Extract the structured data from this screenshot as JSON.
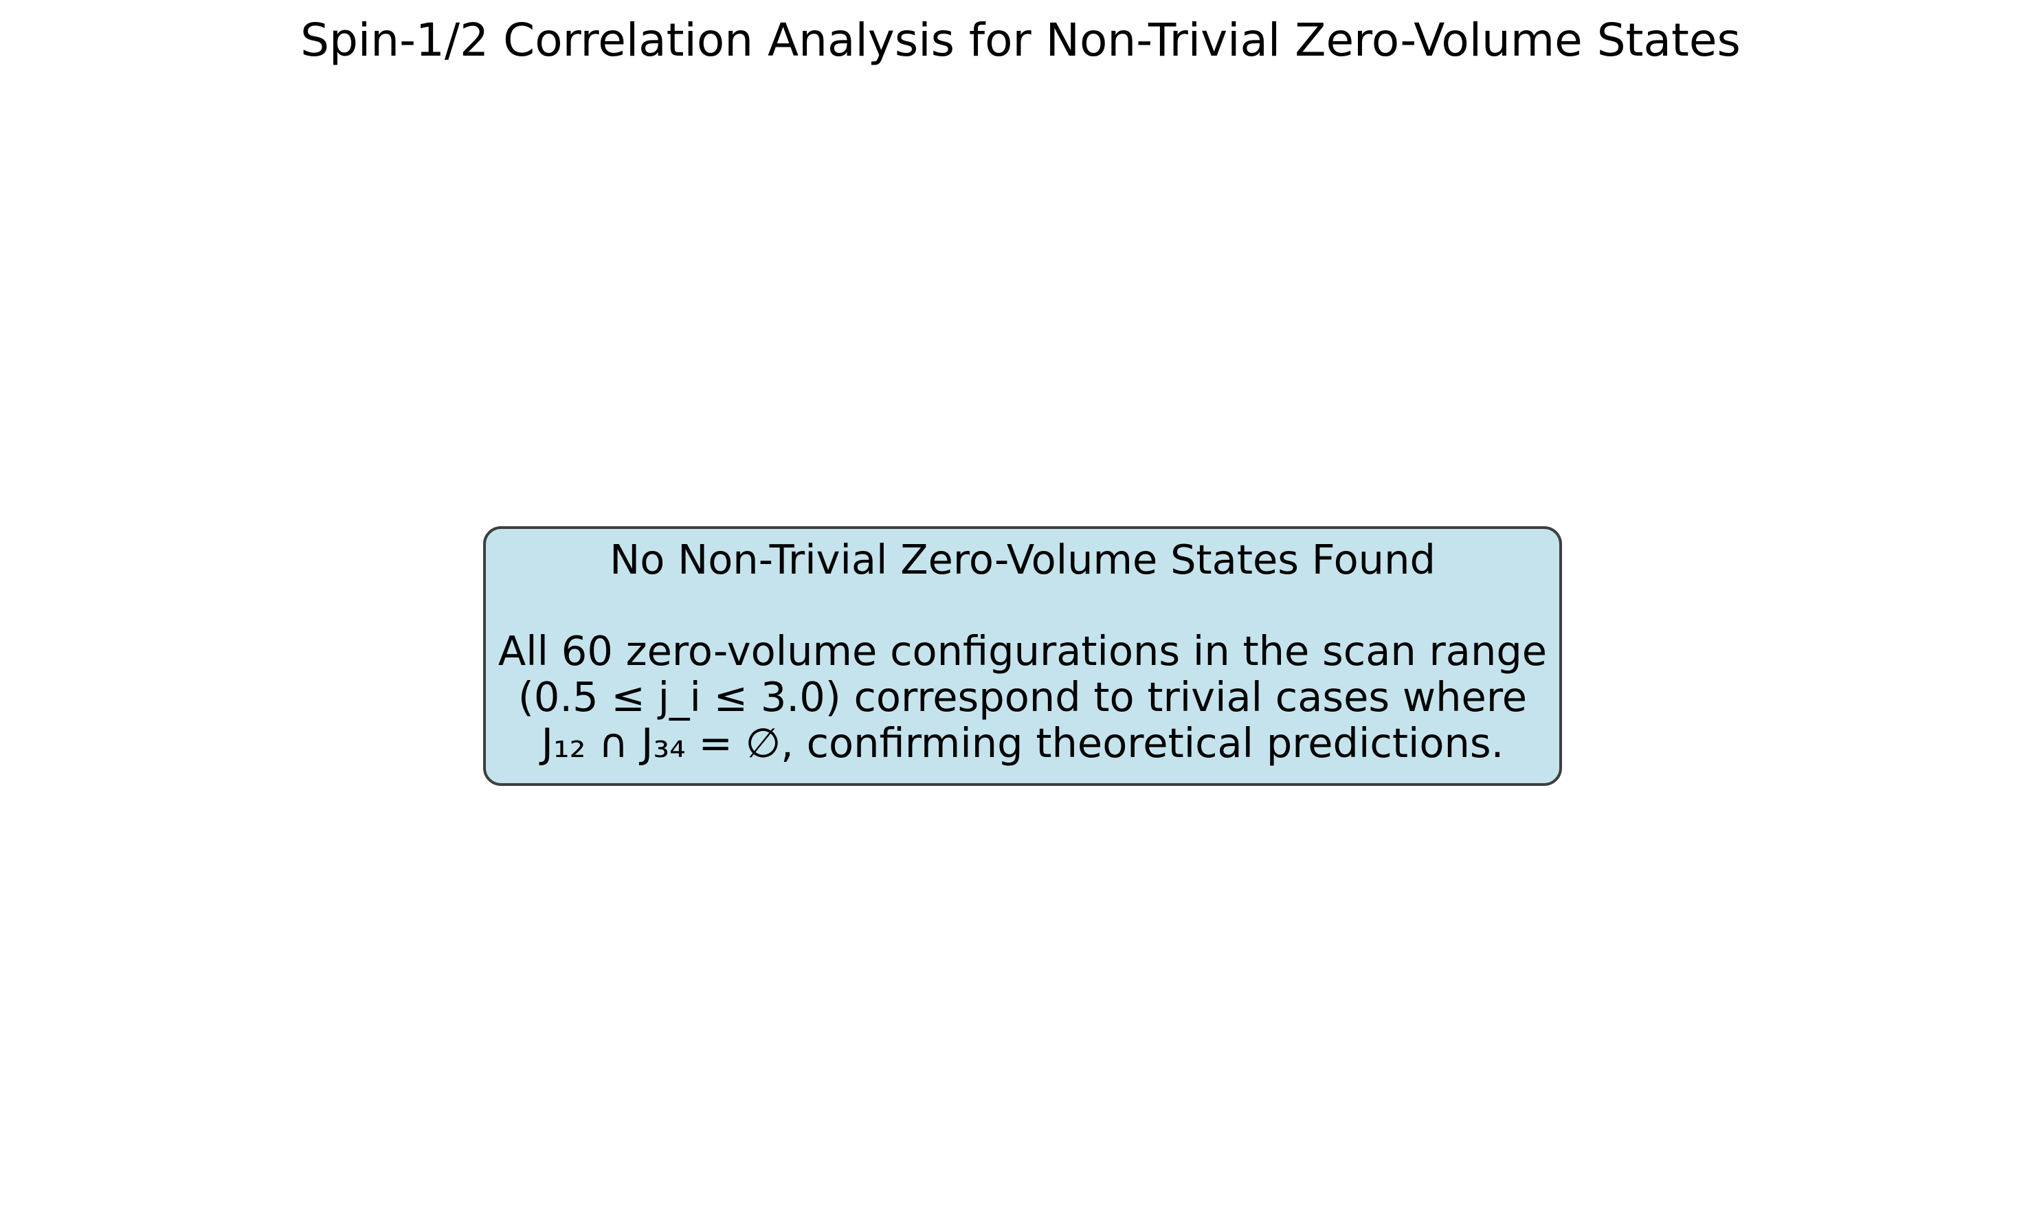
{
  "chart_data": {
    "type": "other",
    "title": "Spin-1/2 Correlation Analysis for Non-Trivial Zero-Volume States",
    "annotation": {
      "heading": "No Non-Trivial Zero-Volume States Found",
      "lines": [
        "All 60 zero-volume configurations in the scan range",
        "(0.5 ≤ j_i ≤ 3.0) correspond to trivial cases where",
        "J₁₂ ∩ J₃₄ = ∅, confirming theoretical predictions."
      ]
    },
    "grid": false,
    "axes_visible": false
  },
  "colors": {
    "box_fill": "#c5e3ec",
    "box_border": "#3f3f3f",
    "text": "#000000",
    "background": "#ffffff"
  }
}
